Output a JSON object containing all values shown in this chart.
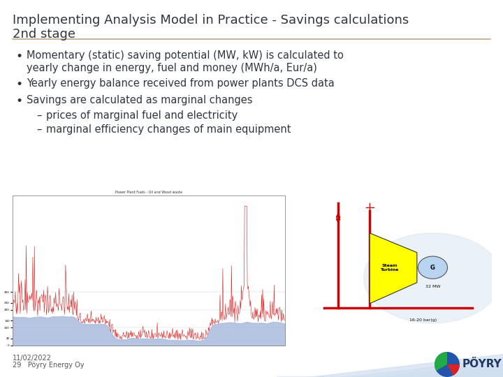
{
  "title_line1": "Implementing Analysis Model in Practice - Savings calculations",
  "title_line2": "2nd stage",
  "title_color": "#2F3640",
  "title_fontsize": 13,
  "separator_color": "#C8A882",
  "bg_color": "#FFFFFF",
  "bullet_color": "#2F3640",
  "bullet_fontsize": 10.5,
  "bullets": [
    "Momentary (static) saving potential (MW, kW) is calculated to\nyearly change in energy, fuel and money (MWh/a, Eur/a)",
    "Yearly energy balance received from power plants DCS data",
    "Savings are calculated as marginal changes"
  ],
  "sub_bullets": [
    "prices of marginal fuel and electricity",
    "marginal efficiency changes of main equipment"
  ],
  "footer_page": "29",
  "footer_date": "11/02/2022",
  "footer_company": "Pöyry Energy Oy",
  "footer_color": "#555555",
  "footer_fontsize": 7,
  "left_image_title": "Power Plant Fuels - Oil and Wood waste",
  "poyry_logo_color": "#1F3864",
  "light_blue_bg": "#D6E4F0",
  "turbine_color": "#FFFF00",
  "generator_color": "#B8D4F0",
  "pipe_color": "#CC0000"
}
